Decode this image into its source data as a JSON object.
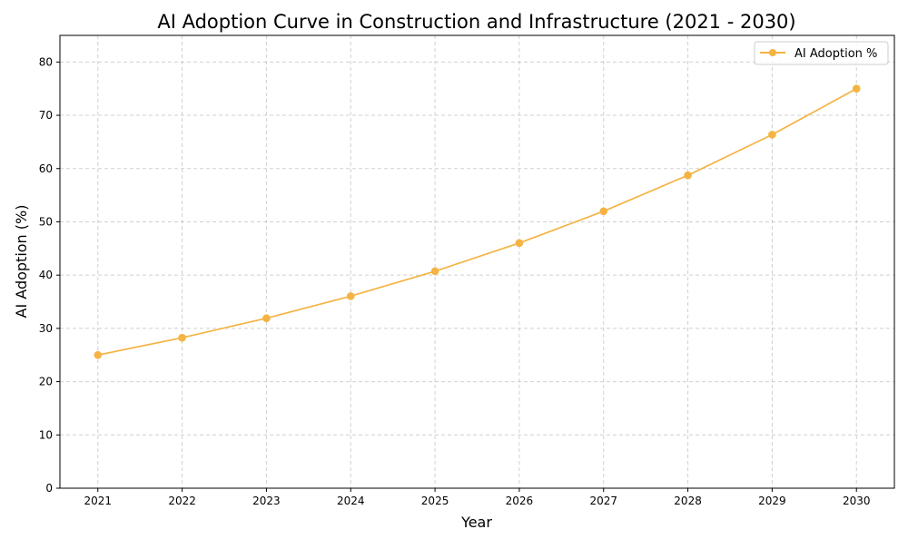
{
  "chart_data": {
    "type": "line",
    "title": "AI Adoption Curve in Construction and Infrastructure (2021 - 2030)",
    "xlabel": "Year",
    "ylabel": "AI Adoption (%)",
    "x": [
      2021,
      2022,
      2023,
      2024,
      2025,
      2026,
      2027,
      2028,
      2029,
      2030
    ],
    "series": [
      {
        "name": "AI Adoption %",
        "color": "#f4b342",
        "marker": "circle",
        "values": [
          25.0,
          28.25,
          31.91,
          36.05,
          40.73,
          46.02,
          51.99,
          58.74,
          66.37,
          75.0
        ]
      }
    ],
    "xlim": [
      2020.55,
      2030.45
    ],
    "ylim": [
      0,
      85
    ],
    "yticks": [
      0,
      10,
      20,
      30,
      40,
      50,
      60,
      70,
      80
    ],
    "xticks": [
      2021,
      2022,
      2023,
      2024,
      2025,
      2026,
      2027,
      2028,
      2029,
      2030
    ],
    "grid": true,
    "grid_style": "dashed",
    "legend_position": "top-right"
  }
}
